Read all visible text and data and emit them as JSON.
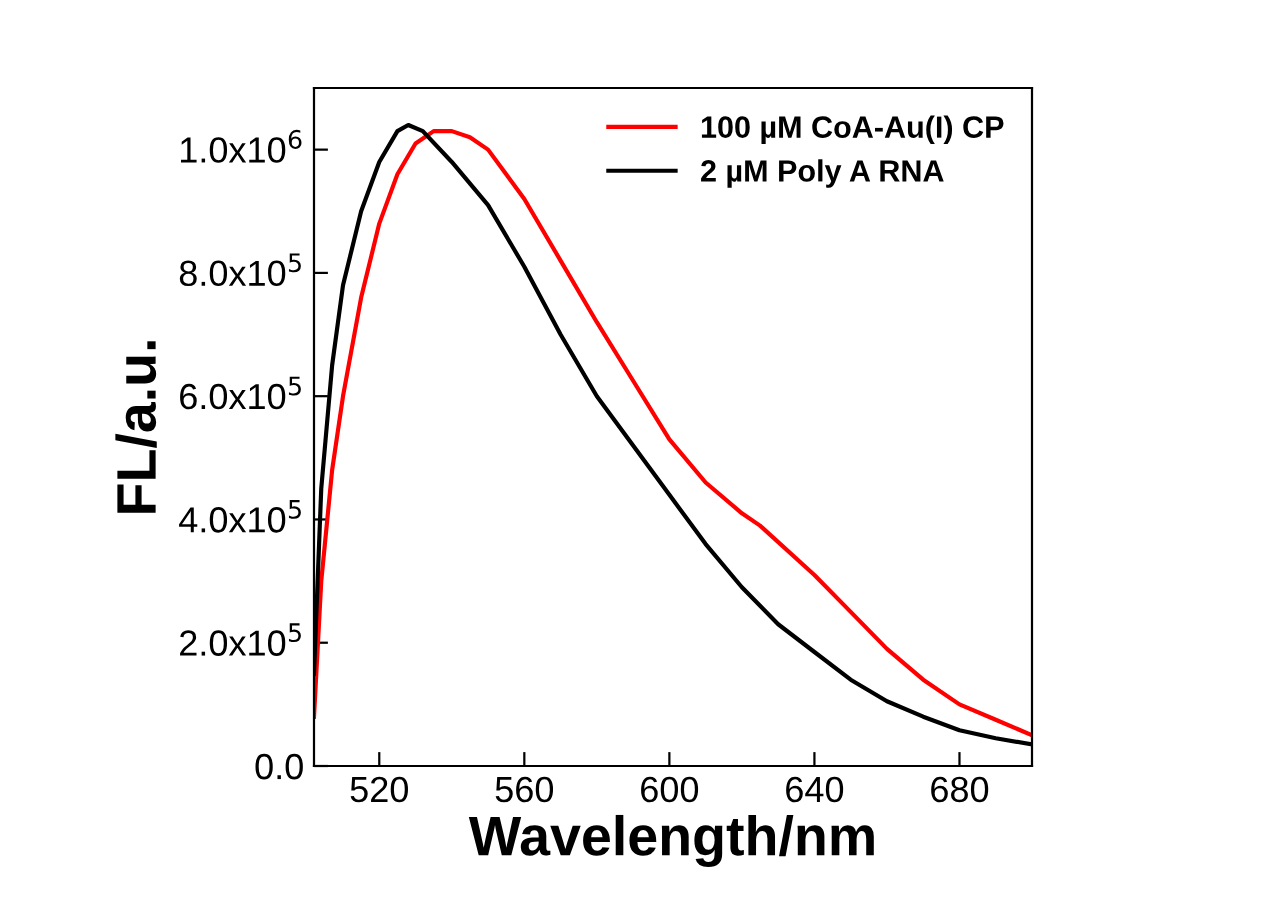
{
  "chart_data": {
    "type": "line",
    "xlabel": "Wavelength/nm",
    "ylabel": "FL/a.u.",
    "xlim": [
      502,
      700
    ],
    "xticks": [
      520,
      560,
      600,
      640,
      680
    ],
    "ylim": [
      0,
      1100000
    ],
    "yticks": [
      {
        "value": 0,
        "label": "0.0"
      },
      {
        "value": 200000,
        "label": "2.0x10$^{5}$"
      },
      {
        "value": 400000,
        "label": "4.0x10$^{5}$"
      },
      {
        "value": 600000,
        "label": "6.0x10$^{5}$"
      },
      {
        "value": 800000,
        "label": "8.0x10$^{5}$"
      },
      {
        "value": 1000000,
        "label": "1.0x10$^{6}$"
      }
    ],
    "legend": "top right",
    "grid": false,
    "marker": "none",
    "line_style": "solid",
    "series": [
      {
        "name": "100 µM CoA-Au(I) CP",
        "color": "#ff0000",
        "x": [
          502,
          504,
          507,
          510,
          515,
          520,
          525,
          530,
          535,
          540,
          545,
          550,
          555,
          560,
          570,
          580,
          590,
          600,
          610,
          620,
          625,
          640,
          650,
          660,
          670,
          680,
          690,
          700
        ],
        "values": [
          80000,
          300000,
          480000,
          600000,
          760000,
          880000,
          960000,
          1010000,
          1030000,
          1030000,
          1020000,
          1000000,
          960000,
          920000,
          820000,
          720000,
          625000,
          530000,
          460000,
          410000,
          390000,
          310000,
          250000,
          190000,
          140000,
          100000,
          75000,
          50000
        ]
      },
      {
        "name": "2 µM Poly A RNA",
        "color": "#000000",
        "x": [
          502,
          504,
          507,
          510,
          515,
          520,
          525,
          528,
          532,
          540,
          550,
          560,
          570,
          580,
          590,
          600,
          610,
          620,
          630,
          640,
          650,
          660,
          670,
          680,
          690,
          700
        ],
        "values": [
          150000,
          450000,
          650000,
          780000,
          900000,
          980000,
          1030000,
          1040000,
          1030000,
          980000,
          910000,
          810000,
          700000,
          600000,
          520000,
          440000,
          360000,
          290000,
          230000,
          185000,
          140000,
          105000,
          80000,
          58000,
          45000,
          35000
        ]
      }
    ]
  }
}
